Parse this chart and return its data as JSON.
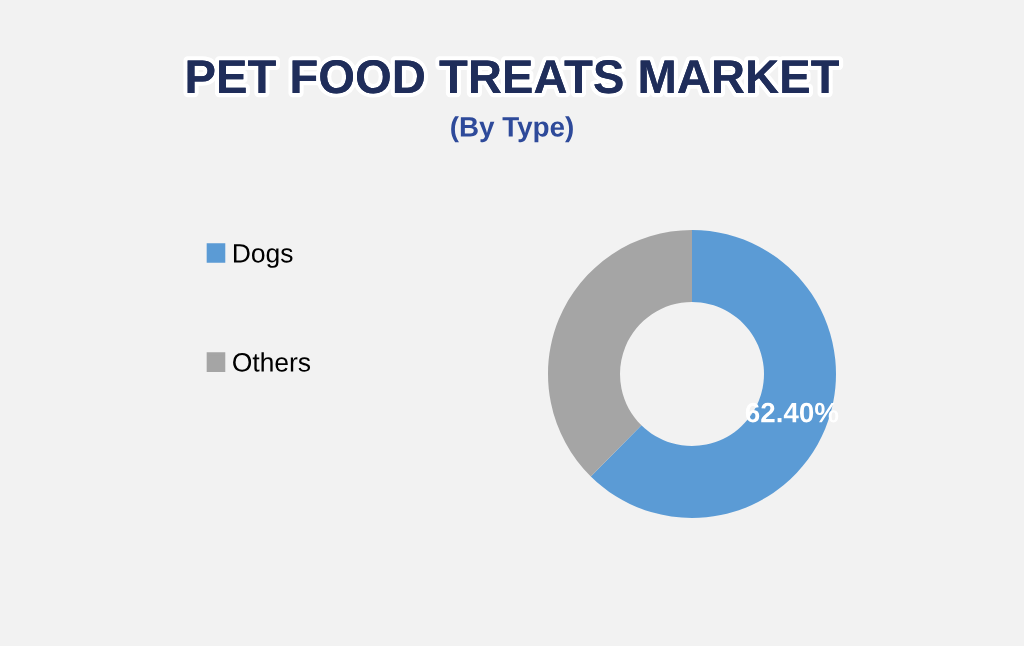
{
  "chart_data": {
    "type": "donut",
    "title": "PET FOOD TREATS MARKET",
    "subtitle": "(By Type)",
    "categories": [
      "Dogs",
      "Others"
    ],
    "values": [
      62.4,
      37.6
    ],
    "colors": [
      "#5b9bd5",
      "#a5a5a5"
    ],
    "value_labels": [
      "62.40%",
      null
    ],
    "legend": "left"
  }
}
